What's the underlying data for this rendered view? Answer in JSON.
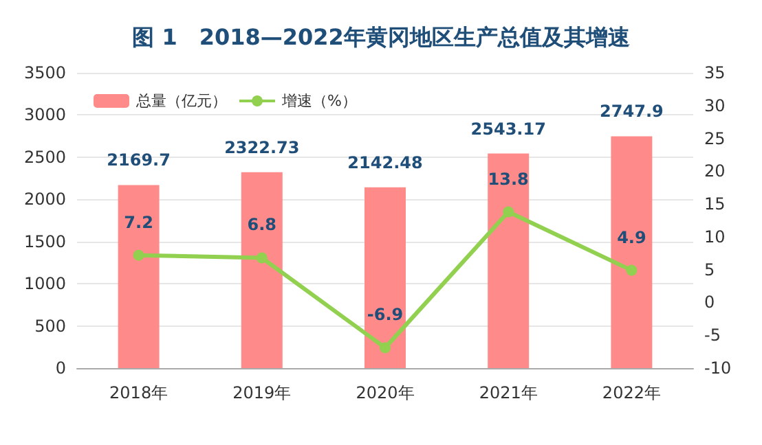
{
  "chart_data": {
    "type": "bar",
    "title": "图 1　2018—2022年黄冈地区生产总值及其增速",
    "categories": [
      "2018年",
      "2019年",
      "2020年",
      "2021年",
      "2022年"
    ],
    "series": [
      {
        "name": "总量（亿元）",
        "color": "#ff8a8a",
        "values": [
          2169.7,
          2322.73,
          2142.48,
          2543.17,
          2747.9
        ]
      },
      {
        "name": "增速（%）",
        "type": "line",
        "axis": "y2",
        "color": "#92d050",
        "values": [
          7.2,
          6.8,
          -6.9,
          13.8,
          4.9
        ]
      }
    ],
    "ylim": [
      0,
      3500
    ],
    "yticks": [
      0,
      500,
      1000,
      1500,
      2000,
      2500,
      3000,
      3500
    ],
    "y2lim": [
      -10,
      35
    ],
    "y2ticks": [
      -10,
      -5,
      0,
      5,
      10,
      15,
      20,
      25,
      30,
      35
    ],
    "grid": "y",
    "legend": "top left",
    "marker": "circle",
    "line_style": "solid",
    "data_labels": true
  }
}
